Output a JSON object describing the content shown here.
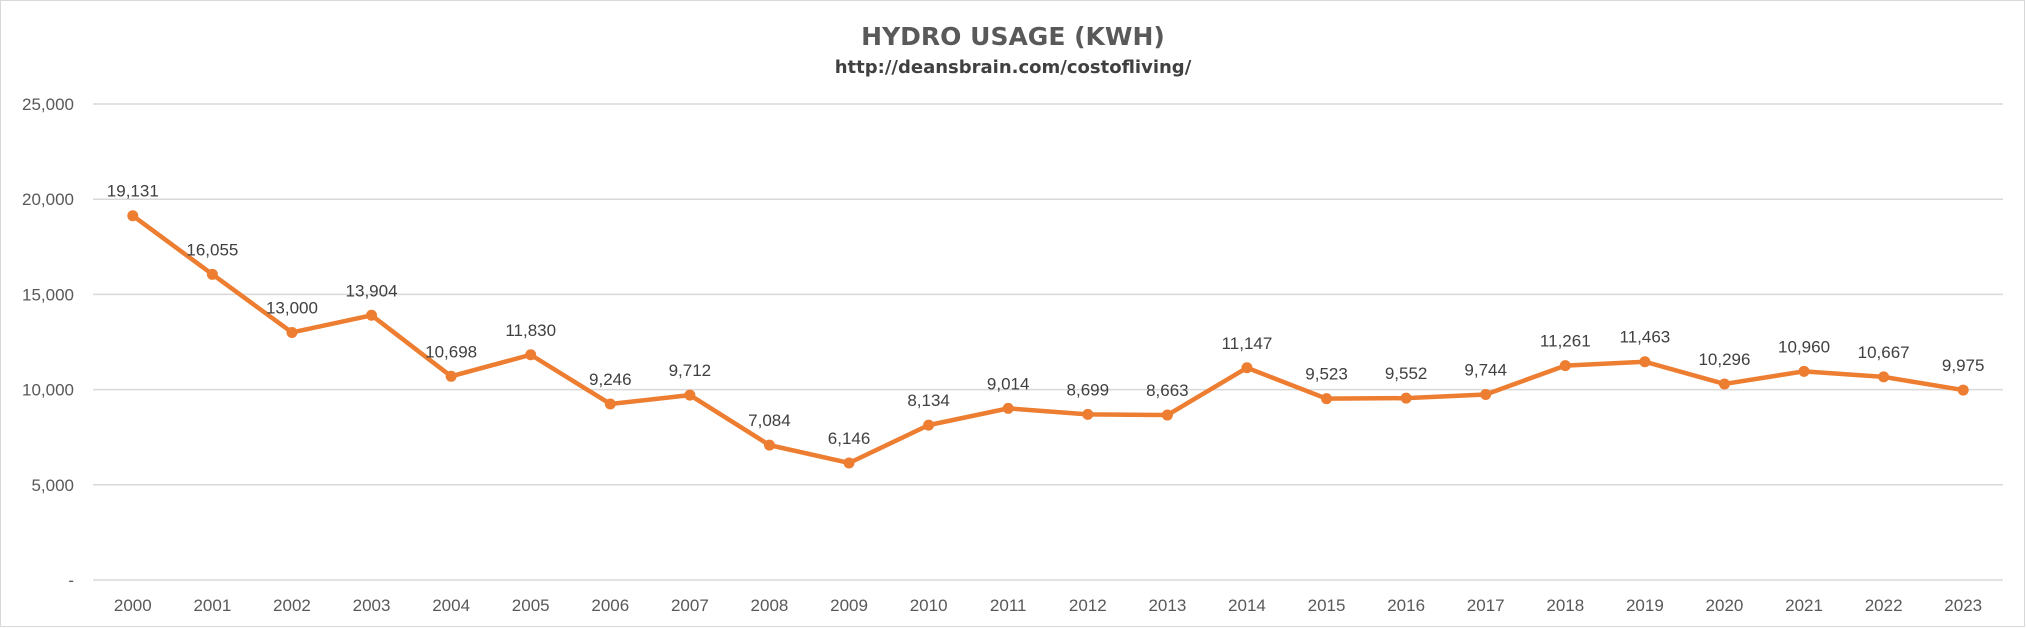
{
  "chart_data": {
    "type": "line",
    "title": "HYDRO USAGE (KWH)",
    "subtitle": "http://deansbrain.com/costofliving/",
    "xlabel": "",
    "ylabel": "",
    "ylim": [
      0,
      25000
    ],
    "y_ticks": [
      0,
      5000,
      10000,
      15000,
      20000,
      25000
    ],
    "y_tick_labels": [
      "-",
      "5,000",
      "10,000",
      "15,000",
      "20,000",
      "25,000"
    ],
    "grid": true,
    "legend": "none",
    "categories": [
      "2000",
      "2001",
      "2002",
      "2003",
      "2004",
      "2005",
      "2006",
      "2007",
      "2008",
      "2009",
      "2010",
      "2011",
      "2012",
      "2013",
      "2014",
      "2015",
      "2016",
      "2017",
      "2018",
      "2019",
      "2020",
      "2021",
      "2022",
      "2023"
    ],
    "series": [
      {
        "name": "Hydro Usage",
        "color": "#ED7D31",
        "values": [
          19131,
          16055,
          13000,
          13904,
          10698,
          11830,
          9246,
          9712,
          7084,
          6146,
          8134,
          9014,
          8699,
          8663,
          11147,
          9523,
          9552,
          9744,
          11261,
          11463,
          10296,
          10960,
          10667,
          9975
        ],
        "labels": [
          "19,131",
          "16,055",
          "13,000",
          "13,904",
          "10,698",
          "11,830",
          "9,246",
          "9,712",
          "7,084",
          "6,146",
          "8,134",
          "9,014",
          "8,699",
          "8,663",
          "11,147",
          "9,523",
          "9,552",
          "9,744",
          "11,261",
          "11,463",
          "10,296",
          "10,960",
          "10,667",
          "9,975"
        ]
      }
    ]
  }
}
